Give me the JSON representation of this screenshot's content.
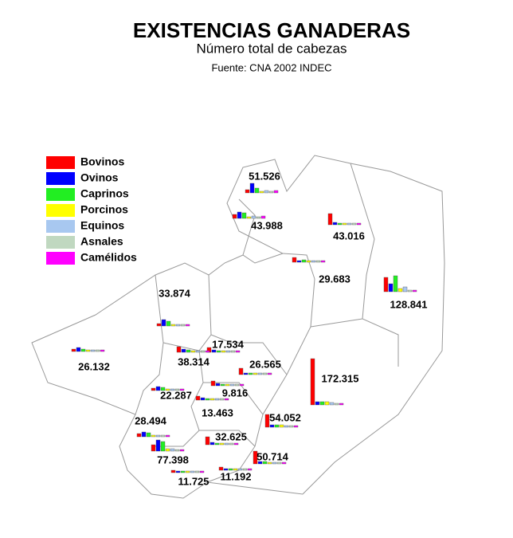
{
  "title": "EXISTENCIAS GANADERAS",
  "subtitle": "Número total de cabezas",
  "source": "Fuente: CNA 2002 INDEC",
  "legend": [
    {
      "name": "Bovinos",
      "color": "#ff0000"
    },
    {
      "name": "Ovinos",
      "color": "#0000ff"
    },
    {
      "name": "Caprinos",
      "color": "#22ee22"
    },
    {
      "name": "Porcinos",
      "color": "#ffff00"
    },
    {
      "name": "Equinos",
      "color": "#a8c8f0"
    },
    {
      "name": "Asnales",
      "color": "#c0d8c0"
    },
    {
      "name": "Camélidos",
      "color": "#ff00ff"
    }
  ],
  "regions": [
    {
      "label": "51.526",
      "bars": [
        4,
        12,
        6,
        2,
        3,
        2,
        3
      ]
    },
    {
      "label": "43.988",
      "bars": [
        5,
        8,
        7,
        2,
        3,
        2,
        3
      ]
    },
    {
      "label": "43.016",
      "bars": [
        14,
        3,
        2,
        2,
        2,
        2,
        2
      ]
    },
    {
      "label": "29.683",
      "bars": [
        6,
        2,
        3,
        2,
        2,
        2,
        2
      ]
    },
    {
      "label": "128.841",
      "bars": [
        18,
        10,
        20,
        4,
        6,
        2,
        2
      ]
    },
    {
      "label": "33.874",
      "bars": [
        3,
        8,
        6,
        2,
        2,
        2,
        2
      ]
    },
    {
      "label": "26.132",
      "bars": [
        3,
        5,
        3,
        2,
        2,
        2,
        2
      ]
    },
    {
      "label": "17.534",
      "bars": [
        6,
        3,
        2,
        2,
        2,
        2,
        2
      ]
    },
    {
      "label": "38.314",
      "bars": [
        7,
        4,
        3,
        2,
        2,
        2,
        2
      ]
    },
    {
      "label": "26.565",
      "bars": [
        8,
        2,
        2,
        2,
        2,
        2,
        2
      ]
    },
    {
      "label": "172.315",
      "bars": [
        58,
        4,
        4,
        4,
        3,
        2,
        2
      ]
    },
    {
      "label": "22.287",
      "bars": [
        3,
        5,
        4,
        2,
        2,
        2,
        2
      ]
    },
    {
      "label": "9.816",
      "bars": [
        6,
        3,
        2,
        2,
        2,
        2,
        2
      ]
    },
    {
      "label": "13.463",
      "bars": [
        5,
        3,
        2,
        2,
        2,
        2,
        2
      ]
    },
    {
      "label": "54.052",
      "bars": [
        16,
        3,
        3,
        3,
        2,
        2,
        2
      ]
    },
    {
      "label": "28.494",
      "bars": [
        4,
        6,
        5,
        2,
        2,
        2,
        2
      ]
    },
    {
      "label": "32.625",
      "bars": [
        10,
        3,
        2,
        2,
        2,
        2,
        2
      ]
    },
    {
      "label": "77.398",
      "bars": [
        8,
        14,
        12,
        3,
        3,
        2,
        2
      ]
    },
    {
      "label": "50.714",
      "bars": [
        16,
        3,
        3,
        2,
        2,
        2,
        2
      ]
    },
    {
      "label": "11.725",
      "bars": [
        3,
        2,
        2,
        2,
        2,
        2,
        2
      ]
    },
    {
      "label": "11.192",
      "bars": [
        4,
        2,
        2,
        2,
        2,
        2,
        2
      ]
    }
  ]
}
